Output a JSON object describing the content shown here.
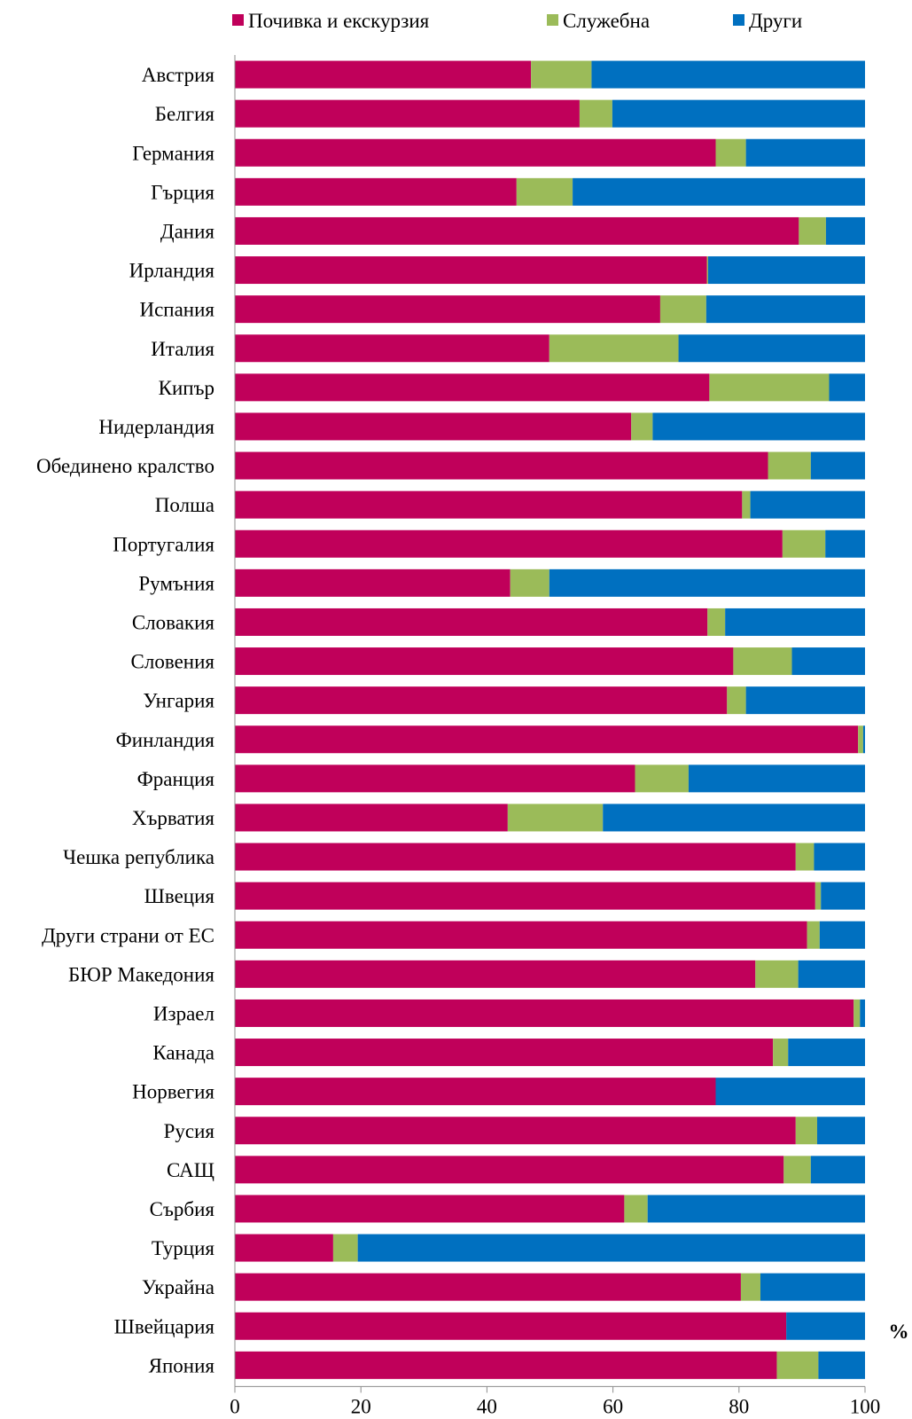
{
  "chart_data": {
    "type": "bar",
    "orientation": "horizontal",
    "stacked": true,
    "unit": "%",
    "xlim": [
      0,
      100
    ],
    "ticks": [
      0,
      20,
      40,
      60,
      80,
      100
    ],
    "legend_position": "top",
    "categories": [
      "Австрия",
      "Белгия",
      "Германия",
      "Гърция",
      "Дания",
      "Ирландия",
      "Испания",
      "Италия",
      "Кипър",
      "Нидерландия",
      "Обединено кралство",
      "Полша",
      "Португалия",
      "Румъния",
      "Словакия",
      "Словения",
      "Унгария",
      "Финландия",
      "Франция",
      "Хърватия",
      "Чешка република",
      "Швеция",
      "Други страни от ЕС",
      "БЮР Македония",
      "Израел",
      "Канада",
      "Норвегия",
      "Русия",
      "САЩ",
      "Сърбия",
      "Турция",
      "Украйна",
      "Швейцария",
      "Япония"
    ],
    "series": [
      {
        "name": "Почивка и екскурзия",
        "color": "#c0005a",
        "values": [
          47.0,
          54.7,
          76.3,
          44.7,
          89.5,
          74.9,
          67.5,
          49.9,
          75.3,
          62.9,
          84.6,
          80.5,
          86.9,
          43.7,
          75.0,
          79.1,
          78.1,
          98.9,
          63.5,
          43.3,
          89.0,
          92.1,
          90.8,
          82.6,
          98.2,
          85.4,
          76.3,
          89.0,
          87.1,
          61.8,
          15.6,
          80.3,
          87.5,
          86.0
        ]
      },
      {
        "name": "Служебна",
        "color": "#9bbb59",
        "values": [
          9.6,
          5.2,
          4.8,
          8.9,
          4.3,
          0.2,
          7.3,
          20.5,
          19.0,
          3.4,
          6.8,
          1.3,
          6.8,
          6.2,
          2.8,
          9.3,
          3.0,
          0.8,
          8.5,
          15.1,
          2.9,
          0.9,
          2.0,
          6.8,
          1.0,
          2.4,
          0.0,
          3.4,
          4.3,
          3.7,
          3.9,
          3.1,
          0.0,
          6.6
        ]
      },
      {
        "name": "Други",
        "color": "#0070c0",
        "values": [
          43.4,
          40.1,
          18.9,
          46.4,
          6.2,
          24.9,
          25.2,
          29.6,
          5.7,
          33.7,
          8.6,
          18.2,
          6.3,
          50.1,
          22.2,
          11.6,
          18.9,
          0.3,
          28.0,
          41.6,
          8.1,
          7.0,
          7.2,
          10.6,
          0.8,
          12.2,
          23.7,
          7.6,
          8.6,
          34.5,
          80.5,
          16.6,
          12.5,
          7.4
        ]
      }
    ]
  }
}
